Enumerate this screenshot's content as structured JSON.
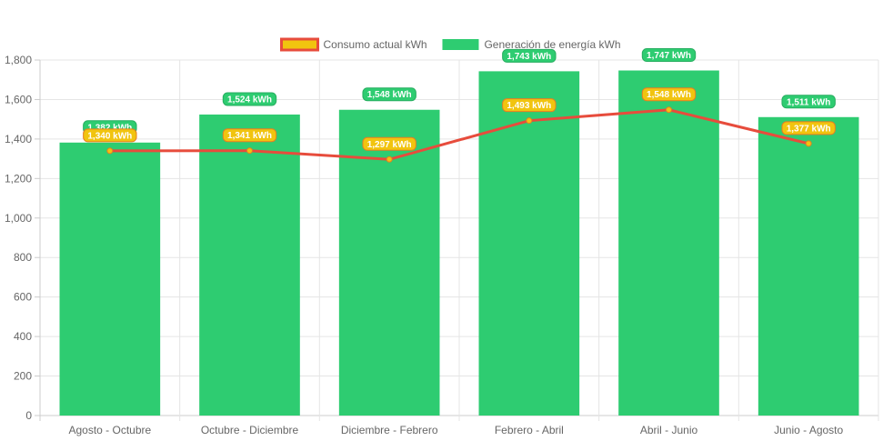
{
  "chart_data": {
    "type": "bar",
    "categories": [
      "Agosto - Octubre",
      "Octubre - Diciembre",
      "Diciembre - Febrero",
      "Febrero - Abril",
      "Abril - Junio",
      "Junio - Agosto"
    ],
    "series": [
      {
        "name": "Consumo actual kWh",
        "type": "line",
        "values": [
          1340,
          1341,
          1297,
          1493,
          1548,
          1377
        ],
        "labels": [
          "1,340 kWh",
          "1,341 kWh",
          "1,297 kWh",
          "1,493 kWh",
          "1,548 kWh",
          "1,377 kWh"
        ],
        "color": "#e74c3c",
        "label_color": "#f1c40f"
      },
      {
        "name": "Generación de energía kWh",
        "type": "bar",
        "values": [
          1382,
          1524,
          1548,
          1743,
          1747,
          1511
        ],
        "labels": [
          "1,382 kWh",
          "1,524 kWh",
          "1,548 kWh",
          "1,743 kWh",
          "1,747 kWh",
          "1,511 kWh"
        ],
        "color": "#2ecc71"
      }
    ],
    "yticks": [
      "0",
      "200",
      "400",
      "600",
      "800",
      "1,000",
      "1,200",
      "1,400",
      "1,600",
      "1,800"
    ],
    "ylim": [
      0,
      1800
    ],
    "legend_position": "top",
    "grid": true
  }
}
